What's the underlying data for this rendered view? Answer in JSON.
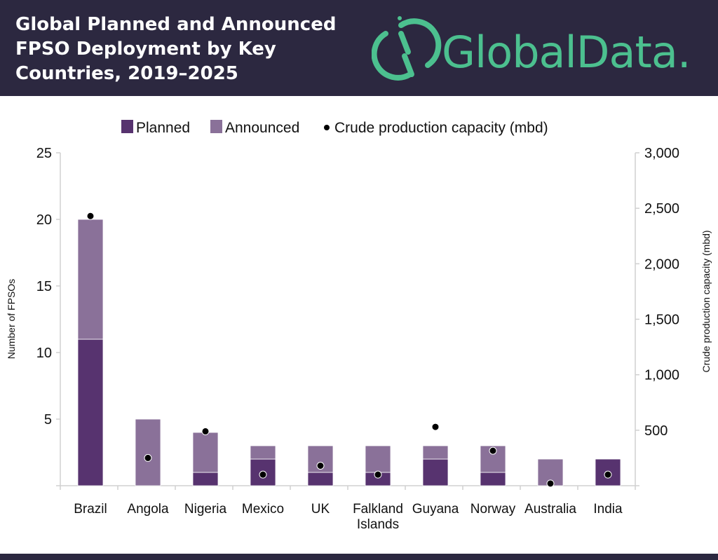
{
  "header": {
    "title_lines": [
      "Global Planned and Announced",
      "FPSO Deployment by Key",
      "Countries, 2019–2025"
    ],
    "logo_text": "GlobalData."
  },
  "colors": {
    "header_bg": "#2c2840",
    "brand_green": "#4cc08f",
    "planned": "#57336f",
    "announced": "#8a7199",
    "dot": "#000000",
    "axis": "#d0d0d0"
  },
  "chart_data": {
    "type": "bar",
    "stacked": true,
    "title": "Global Planned and Announced FPSO Deployment by Key Countries, 2019–2025",
    "categories": [
      "Brazil",
      "Angola",
      "Nigeria",
      "Mexico",
      "UK",
      "Falkland Islands",
      "Guyana",
      "Norway",
      "Australia",
      "India"
    ],
    "category_labels": [
      [
        "Brazil"
      ],
      [
        "Angola"
      ],
      [
        "Nigeria"
      ],
      [
        "Mexico"
      ],
      [
        "UK"
      ],
      [
        "Falkland",
        "Islands"
      ],
      [
        "Guyana"
      ],
      [
        "Norway"
      ],
      [
        "Australia"
      ],
      [
        "India"
      ]
    ],
    "series": [
      {
        "name": "Planned",
        "type": "bar",
        "axis": "left",
        "values": [
          11,
          0,
          1,
          2,
          1,
          1,
          2,
          1,
          0,
          2
        ]
      },
      {
        "name": "Announced",
        "type": "bar",
        "axis": "left",
        "values": [
          9,
          5,
          3,
          1,
          2,
          2,
          1,
          2,
          2,
          0
        ]
      },
      {
        "name": "Crude production capacity (mbd)",
        "type": "scatter",
        "axis": "right",
        "values": [
          2430,
          250,
          490,
          100,
          180,
          100,
          530,
          315,
          20,
          100
        ]
      }
    ],
    "ylabel": "Number of FPSOs",
    "ylim": [
      0,
      25
    ],
    "yticks": [
      5,
      10,
      15,
      20,
      25
    ],
    "y2label": "Crude production capacity (mbd)",
    "y2lim": [
      0,
      3000
    ],
    "y2ticks": [
      500,
      1000,
      1500,
      2000,
      2500,
      3000
    ],
    "y2tick_labels": [
      "500",
      "1,000",
      "1,500",
      "2,000",
      "2,500",
      "3,000"
    ],
    "legend": {
      "position": "top-center",
      "entries": [
        "Planned",
        "Announced",
        "Crude production capacity (mbd)"
      ]
    },
    "grid": false
  }
}
